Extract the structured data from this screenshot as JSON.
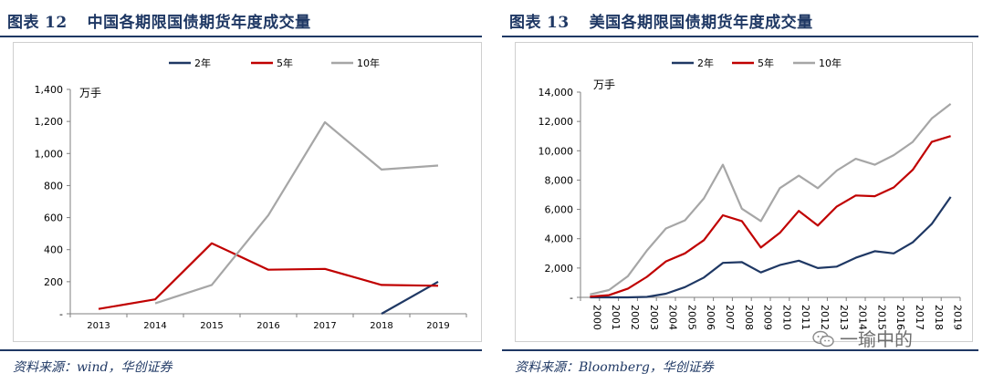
{
  "left": {
    "title_label": "图表",
    "title_number": "12",
    "title_text": "中国各期限国债期货年度成交量",
    "source": "资料来源：wind，华创证券"
  },
  "right": {
    "title_label": "图表",
    "title_number": "13",
    "title_text": "美国各期限国债期货年度成交量",
    "source": "资料来源：Bloomberg，华创证券"
  },
  "watermark": "一瑜中的",
  "colors": {
    "navy": "#1f3864",
    "red": "#c00000",
    "gray": "#a6a6a6",
    "rule": "#1f3864"
  },
  "chart_data": [
    {
      "type": "line",
      "unit_label": "万手",
      "x": [
        "2013",
        "2014",
        "2015",
        "2016",
        "2017",
        "2018",
        "2019"
      ],
      "yticks": [
        "-",
        "200",
        "400",
        "600",
        "800",
        "1,000",
        "1,200",
        "1,400"
      ],
      "ylim": [
        0,
        1400
      ],
      "legend_position": "top-center",
      "series": [
        {
          "name": "2年",
          "color": "#1f3864",
          "values": [
            null,
            null,
            null,
            null,
            null,
            0,
            200
          ]
        },
        {
          "name": "5年",
          "color": "#c00000",
          "values": [
            30,
            90,
            440,
            275,
            280,
            180,
            175
          ]
        },
        {
          "name": "10年",
          "color": "#a6a6a6",
          "values": [
            null,
            65,
            180,
            615,
            1195,
            900,
            925
          ]
        }
      ]
    },
    {
      "type": "line",
      "unit_label": "万手",
      "x": [
        "2000",
        "2001",
        "2002",
        "2003",
        "2004",
        "2005",
        "2006",
        "2007",
        "2008",
        "2009",
        "2010",
        "2011",
        "2012",
        "2013",
        "2014",
        "2015",
        "2016",
        "2017",
        "2018",
        "2019"
      ],
      "yticks": [
        "-",
        "2,000",
        "4,000",
        "6,000",
        "8,000",
        "10,000",
        "12,000",
        "14,000"
      ],
      "ylim": [
        0,
        14000
      ],
      "legend_position": "top-center",
      "series": [
        {
          "name": "2年",
          "color": "#1f3864",
          "values": [
            0,
            0,
            0,
            30,
            250,
            700,
            1350,
            2350,
            2400,
            1700,
            2200,
            2500,
            2000,
            2100,
            2700,
            3150,
            3000,
            3750,
            5000,
            6850
          ]
        },
        {
          "name": "5年",
          "color": "#c00000",
          "values": [
            50,
            150,
            600,
            1400,
            2450,
            3000,
            3900,
            5600,
            5200,
            3400,
            4400,
            5900,
            4900,
            6200,
            6950,
            6900,
            7500,
            8700,
            10600,
            11000
          ]
        },
        {
          "name": "10年",
          "color": "#a6a6a6",
          "values": [
            200,
            500,
            1450,
            3200,
            4700,
            5250,
            6750,
            9050,
            6050,
            5200,
            7450,
            8300,
            7450,
            8650,
            9450,
            9050,
            9700,
            10600,
            12200,
            13200
          ]
        }
      ]
    }
  ]
}
